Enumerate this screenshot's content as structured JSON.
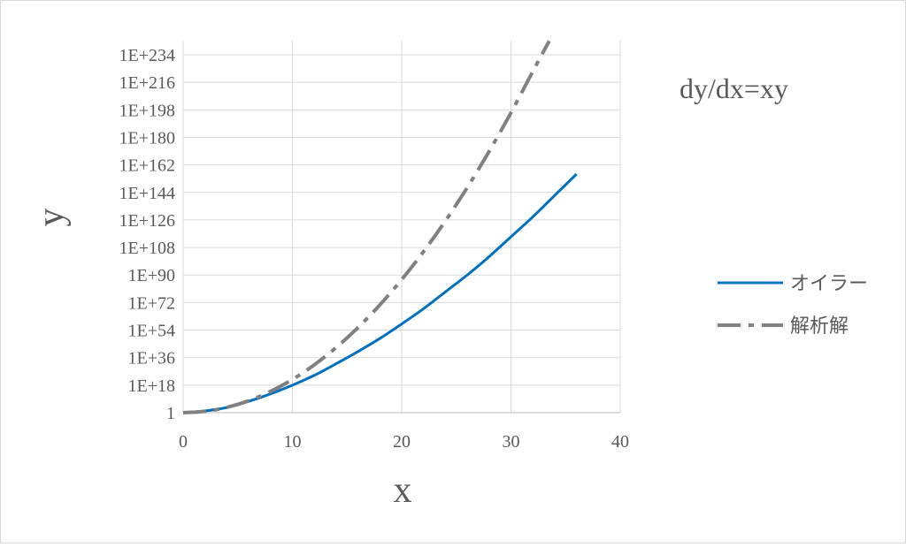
{
  "chart_data": {
    "type": "line",
    "title": "",
    "annotation": "dy/dx=xy",
    "xlabel": "x",
    "ylabel": "y",
    "xlim": [
      0,
      40
    ],
    "x_ticks": [
      "0",
      "10",
      "20",
      "30",
      "40"
    ],
    "y_scale": "log",
    "ylim": [
      "1",
      "1E+234"
    ],
    "y_ticks": [
      "1",
      "1E+18",
      "1E+36",
      "1E+54",
      "1E+72",
      "1E+90",
      "1E+108",
      "1E+126",
      "1E+144",
      "1E+162",
      "1E+180",
      "1E+198",
      "1E+216",
      "1E+234"
    ],
    "grid": true,
    "legend_position": "right",
    "series": [
      {
        "name": "オイラー",
        "color": "#0070c0",
        "style": "solid",
        "x": [
          0,
          2,
          4,
          6,
          8,
          10,
          12,
          14,
          16,
          18,
          20,
          22,
          24,
          26,
          28,
          30,
          32,
          34,
          36
        ],
        "y": [
          "1",
          "1.4E+1",
          "2.5E+3",
          "2.5E+7",
          "2.0E+12",
          "1.0E+18",
          "2.5E+24",
          "1.0E+32",
          "1.0E+40",
          "3.2E+48",
          "1.0E+58",
          "1.0E+68",
          "1.0E+79",
          "1.0E+90",
          "1.0E+102",
          "1.0E+115",
          "1.0E+128",
          "1.0E+142",
          "1.0E+156"
        ]
      },
      {
        "name": "解析解",
        "color": "#808080",
        "style": "dash-dot",
        "x": [
          0,
          2,
          4,
          6,
          8,
          10,
          12,
          14,
          16,
          18,
          20,
          22,
          24,
          26,
          28,
          30,
          32,
          33.5
        ],
        "y": [
          "1",
          "7.4",
          "3.0E+3",
          "6.6E+7",
          "7.9E+13",
          "5.2E+21",
          "1.9E+31",
          "3.9E+42",
          "4.4E+55",
          "2.8E+70",
          "1.0E+87",
          "2.1E+105",
          "2.4E+125",
          "1.6E+147",
          "5.9E+170",
          "1.2E+196",
          "1.4E+223",
          "1.0E+243"
        ]
      }
    ]
  }
}
